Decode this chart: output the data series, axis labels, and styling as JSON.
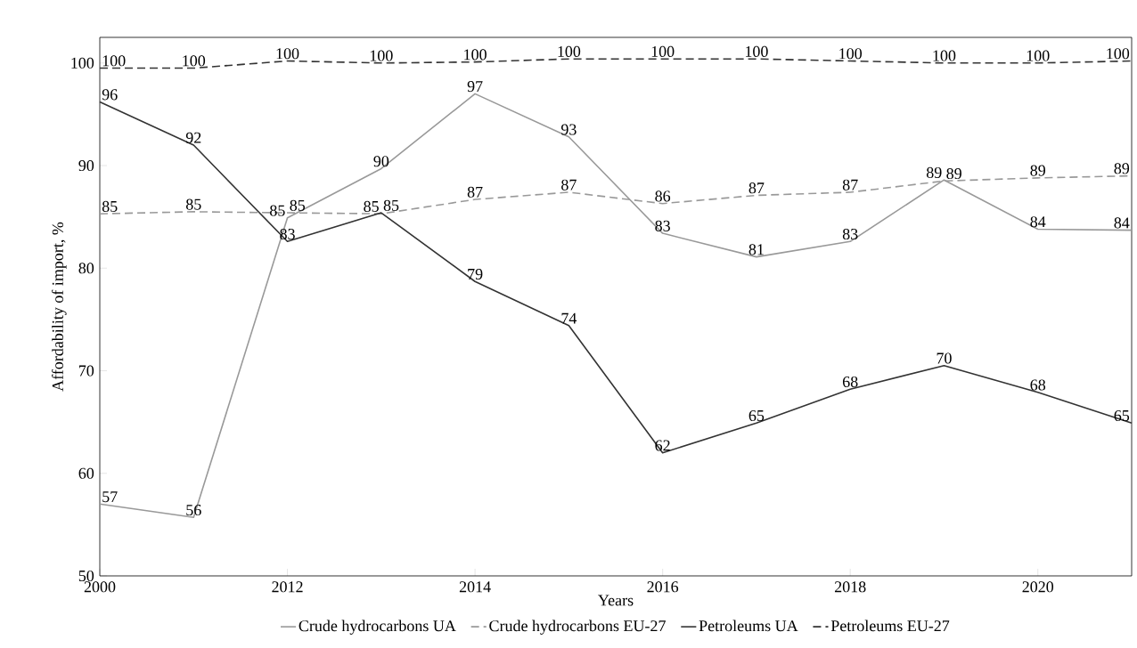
{
  "chart_data": {
    "type": "line",
    "xlabel": "Years",
    "ylabel": "Affordability of import, %",
    "categories": [
      "2000",
      null,
      "2012",
      null,
      "2014",
      null,
      "2016",
      null,
      "2018",
      null,
      "2020",
      null
    ],
    "ylim": [
      50,
      102.5
    ],
    "yticks": [
      50,
      60,
      70,
      80,
      90,
      100
    ],
    "legend": "bottom",
    "grid": false,
    "marker": "none",
    "series": [
      {
        "name": "Crude  hydrocarbons UA",
        "color": "#999999",
        "line_style": "solid",
        "values": [
          57.0,
          55.7,
          84.9,
          89.7,
          97.0,
          92.8,
          83.4,
          81.1,
          82.6,
          88.6,
          83.8,
          83.7
        ],
        "value_labels": [
          "57",
          "56",
          "85",
          "90",
          "97",
          "93",
          "83",
          "81",
          "83",
          "89",
          "84",
          "84"
        ]
      },
      {
        "name": "Crude  hydrocarbons EU-27",
        "color": "#999999",
        "line_style": "dashed",
        "values": [
          85.3,
          85.5,
          85.4,
          85.3,
          86.7,
          87.4,
          86.3,
          87.1,
          87.4,
          88.5,
          88.8,
          89.0
        ],
        "value_labels": [
          "85",
          "85",
          "85",
          "85",
          "87",
          "87",
          "86",
          "87",
          "87",
          "89",
          "89",
          "89"
        ]
      },
      {
        "name": "Petroleums  UA",
        "color": "#333333",
        "line_style": "solid",
        "values": [
          96.2,
          92.0,
          82.6,
          85.4,
          78.7,
          74.4,
          62.0,
          64.9,
          68.2,
          70.5,
          67.9,
          64.9
        ],
        "value_labels": [
          "96",
          "92",
          "83",
          "85",
          "79",
          "74",
          "62",
          "65",
          "68",
          "70",
          "68",
          "65"
        ]
      },
      {
        "name": "Petroleums  EU-27",
        "color": "#333333",
        "line_style": "dashed",
        "values": [
          99.5,
          99.5,
          100.2,
          100.0,
          100.1,
          100.4,
          100.4,
          100.4,
          100.2,
          100.0,
          100.0,
          100.2
        ],
        "value_labels": [
          "100",
          "100",
          "100",
          "100",
          "100",
          "100",
          "100",
          "100",
          "100",
          "100",
          "100",
          "100"
        ]
      }
    ]
  }
}
